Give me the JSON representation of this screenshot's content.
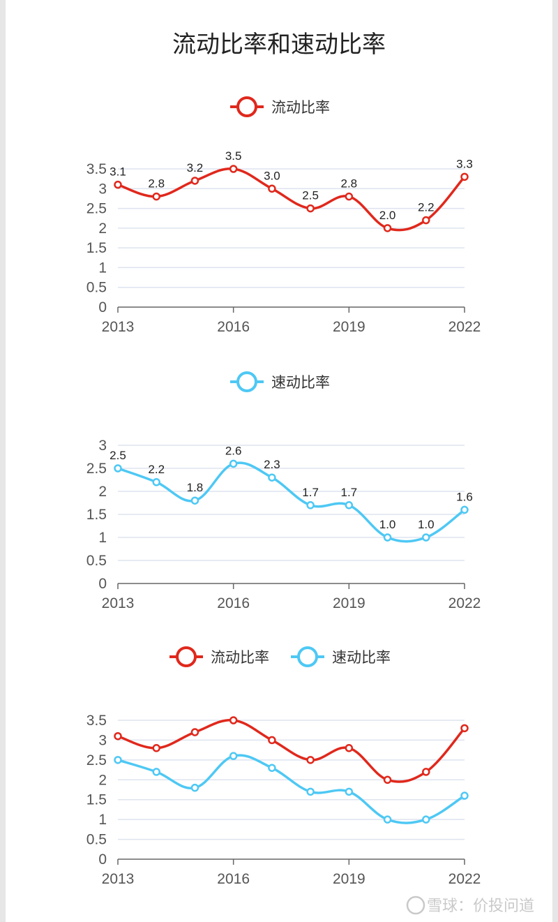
{
  "page": {
    "title": "流动比率和速动比率",
    "watermark": "雪球：价投问道"
  },
  "colors": {
    "current": "#e0281c",
    "quick": "#4ec8f4",
    "grid": "#dde3ef",
    "axis": "#666666"
  },
  "chart_data": [
    {
      "type": "line",
      "title": "",
      "legend": [
        "流动比率"
      ],
      "categories": [
        "2013",
        "2014",
        "2015",
        "2016",
        "2017",
        "2018",
        "2019",
        "2020",
        "2021",
        "2022"
      ],
      "x_tick_labels": [
        "2013",
        "2016",
        "2019",
        "2022"
      ],
      "ylim": [
        0,
        3.5
      ],
      "y_ticks": [
        "0",
        "0.5",
        "1",
        "1.5",
        "2",
        "2.5",
        "3",
        "3.5"
      ],
      "data_labels": true,
      "series": [
        {
          "name": "流动比率",
          "values": [
            3.1,
            2.8,
            3.2,
            3.5,
            3.0,
            2.5,
            2.8,
            2.0,
            2.2,
            3.3
          ],
          "labels": [
            "3.1",
            "2.8",
            "3.2",
            "3.5",
            "3.0",
            "2.5",
            "2.8",
            "2.0",
            "2.2",
            "3.3"
          ]
        }
      ]
    },
    {
      "type": "line",
      "title": "",
      "legend": [
        "速动比率"
      ],
      "categories": [
        "2013",
        "2014",
        "2015",
        "2016",
        "2017",
        "2018",
        "2019",
        "2020",
        "2021",
        "2022"
      ],
      "x_tick_labels": [
        "2013",
        "2016",
        "2019",
        "2022"
      ],
      "ylim": [
        0,
        3
      ],
      "y_ticks": [
        "0",
        "0.5",
        "1",
        "1.5",
        "2",
        "2.5",
        "3"
      ],
      "data_labels": true,
      "series": [
        {
          "name": "速动比率",
          "values": [
            2.5,
            2.2,
            1.8,
            2.6,
            2.3,
            1.7,
            1.7,
            1.0,
            1.0,
            1.6
          ],
          "labels": [
            "2.5",
            "2.2",
            "1.8",
            "2.6",
            "2.3",
            "1.7",
            "1.7",
            "1.0",
            "1.0",
            "1.6"
          ]
        }
      ]
    },
    {
      "type": "line",
      "title": "",
      "legend": [
        "流动比率",
        "速动比率"
      ],
      "categories": [
        "2013",
        "2014",
        "2015",
        "2016",
        "2017",
        "2018",
        "2019",
        "2020",
        "2021",
        "2022"
      ],
      "x_tick_labels": [
        "2013",
        "2016",
        "2019",
        "2022"
      ],
      "ylim": [
        0,
        3.5
      ],
      "y_ticks": [
        "0",
        "0.5",
        "1",
        "1.5",
        "2",
        "2.5",
        "3",
        "3.5"
      ],
      "data_labels": false,
      "series": [
        {
          "name": "流动比率",
          "values": [
            3.1,
            2.8,
            3.2,
            3.5,
            3.0,
            2.5,
            2.8,
            2.0,
            2.2,
            3.3
          ]
        },
        {
          "name": "速动比率",
          "values": [
            2.5,
            2.2,
            1.8,
            2.6,
            2.3,
            1.7,
            1.7,
            1.0,
            1.0,
            1.6
          ]
        }
      ]
    }
  ]
}
